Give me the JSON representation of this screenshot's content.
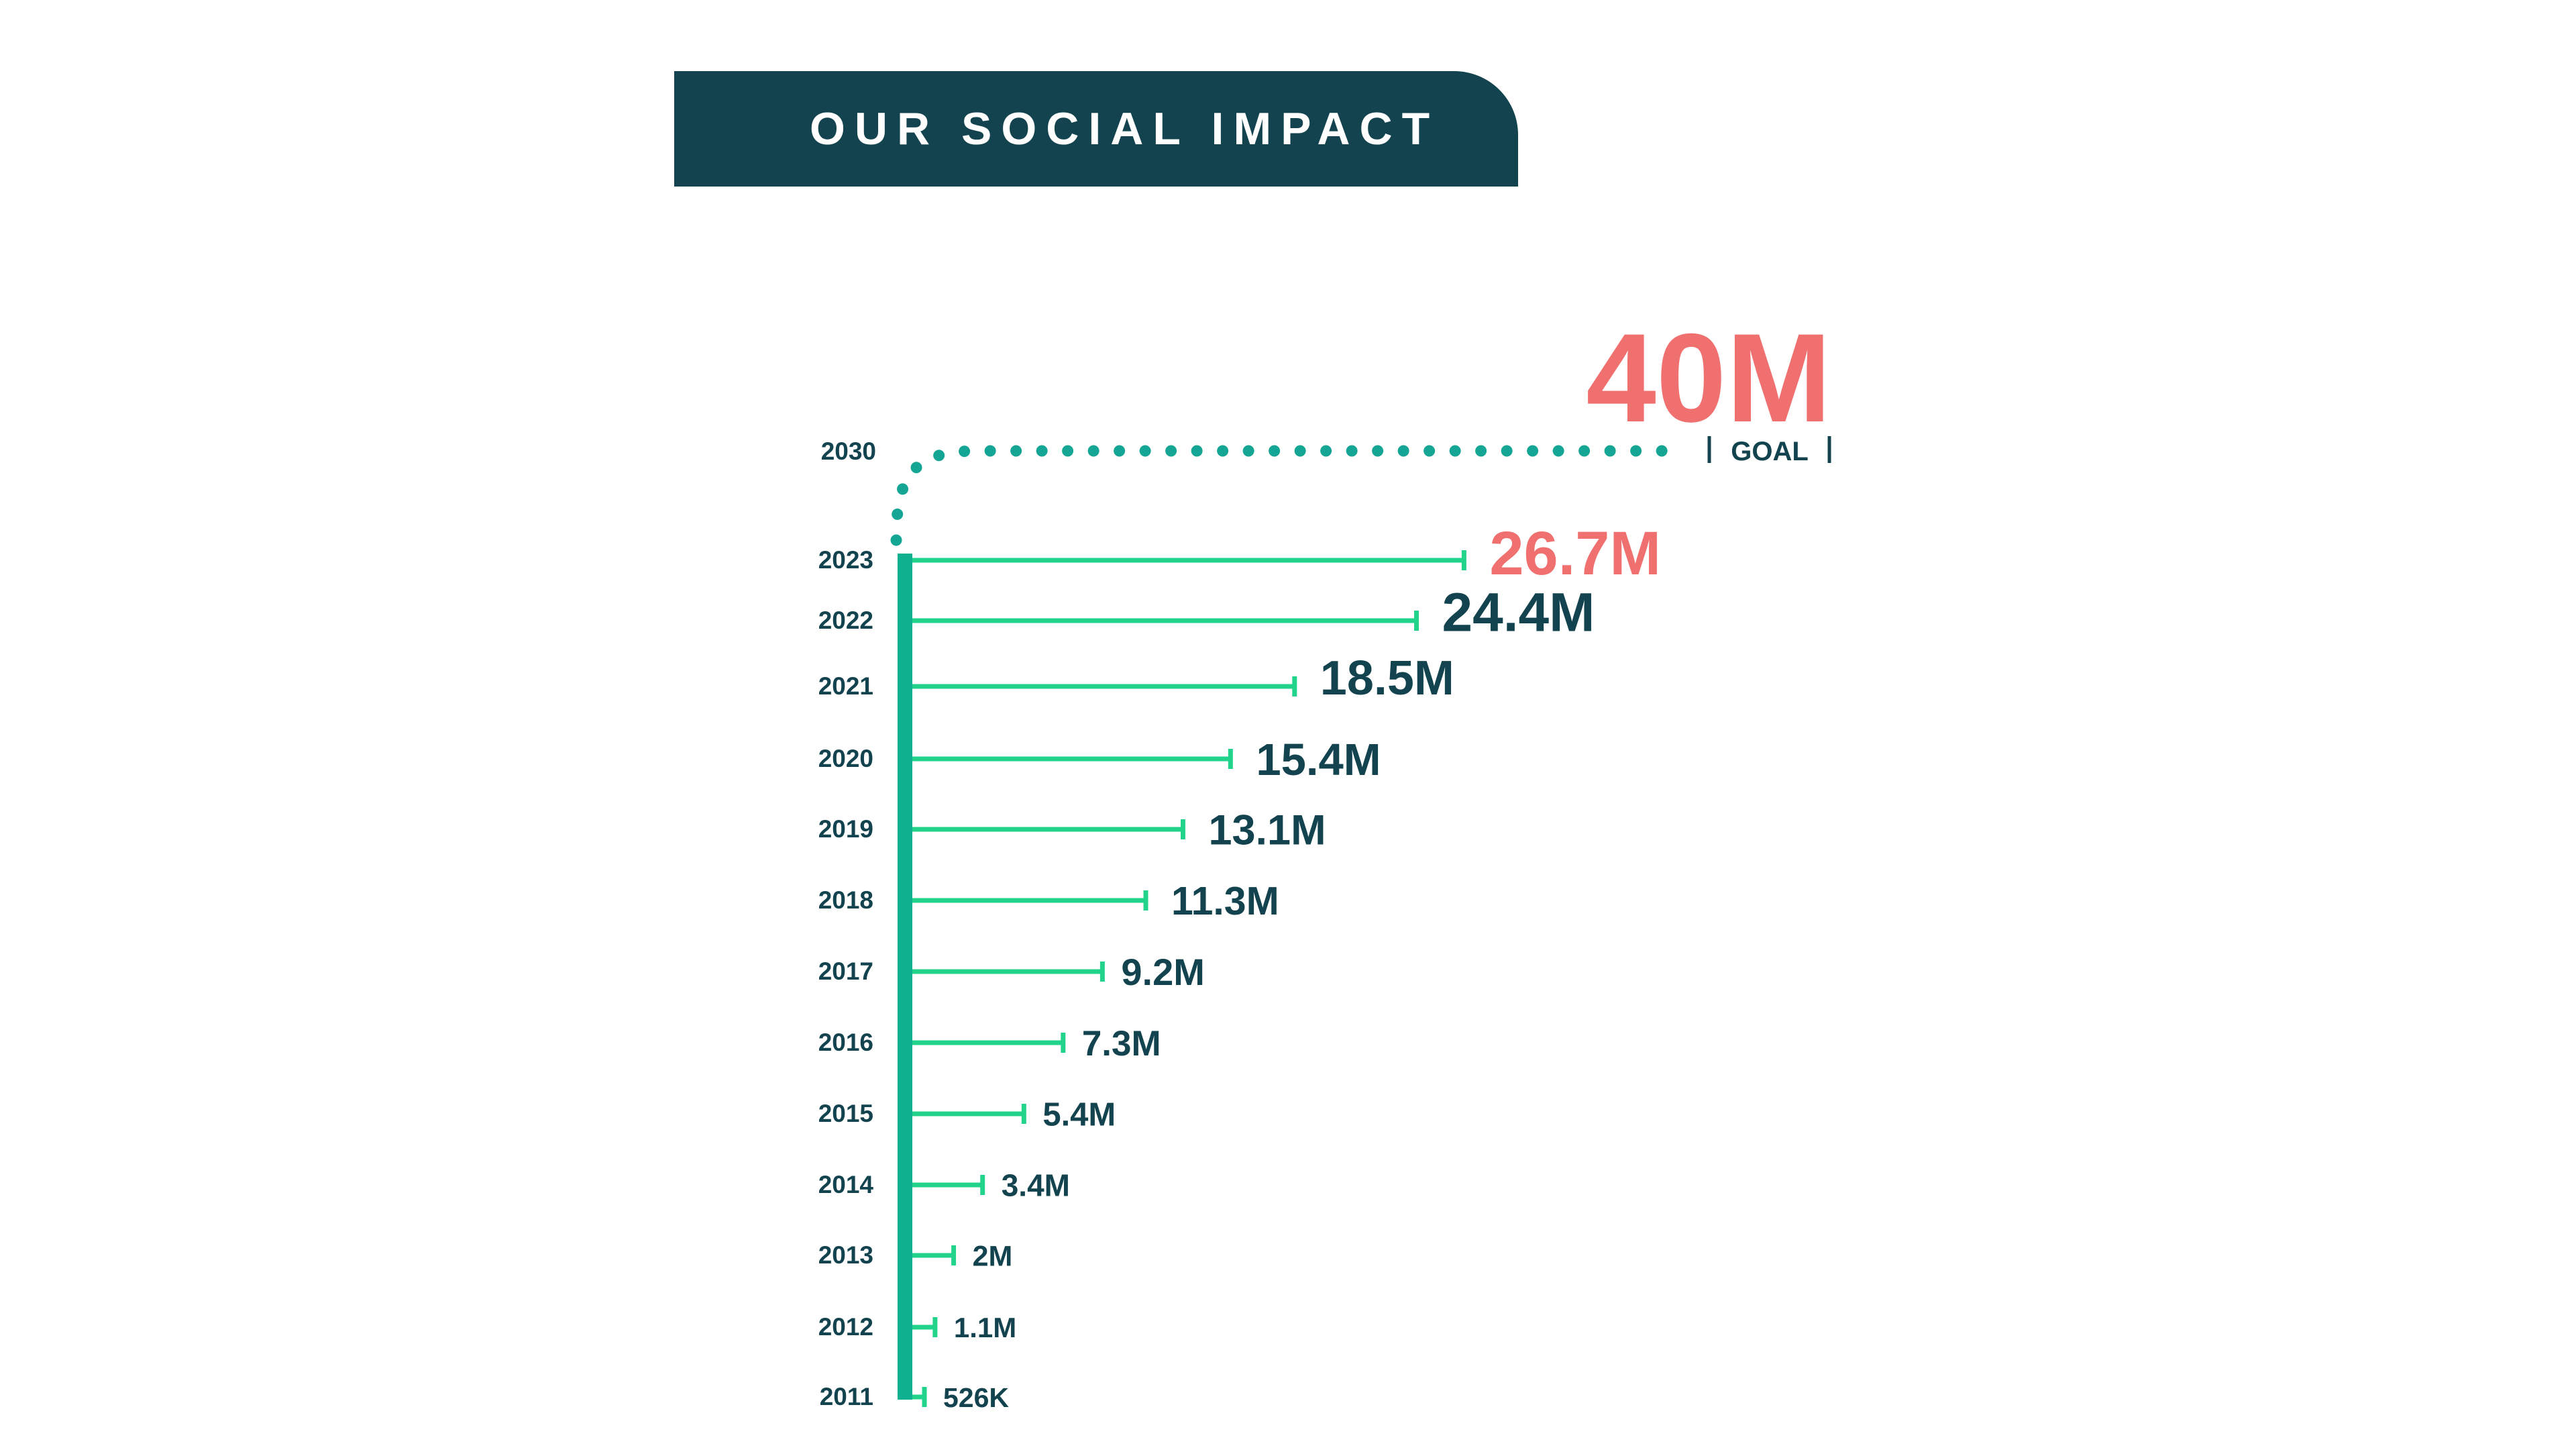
{
  "header": {
    "title": "OUR SOCIAL IMPACT"
  },
  "colors": {
    "dark_teal": "#12434e",
    "trunk_teal": "#0fb08f",
    "bar_green": "#22d38b",
    "dots_teal": "#15a594",
    "coral": "#f07070"
  },
  "chart_data": {
    "type": "bar",
    "orientation": "horizontal",
    "title": "",
    "xlabel": "",
    "ylabel": "",
    "categories": [
      "2011",
      "2012",
      "2013",
      "2014",
      "2015",
      "2016",
      "2017",
      "2018",
      "2019",
      "2020",
      "2021",
      "2022",
      "2023"
    ],
    "values": [
      0.526,
      1.1,
      2,
      3.4,
      5.4,
      7.3,
      9.2,
      11.3,
      13.1,
      15.4,
      18.5,
      24.4,
      26.7
    ],
    "value_labels": [
      "526K",
      "1.1M",
      "2M",
      "3.4M",
      "5.4M",
      "7.3M",
      "9.2M",
      "11.3M",
      "13.1M",
      "15.4M",
      "18.5M",
      "24.4M",
      "26.7M"
    ],
    "highlight": "2023",
    "goal": {
      "year": "2030",
      "value": 40,
      "value_label": "40M",
      "label": "GOAL",
      "style": "dotted"
    },
    "grid": false,
    "legend": "none"
  }
}
